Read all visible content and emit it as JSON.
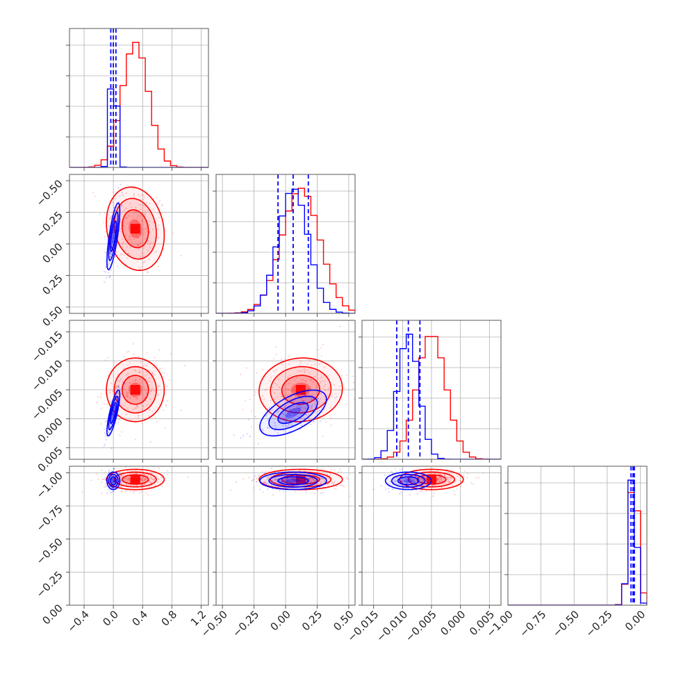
{
  "chart_data": {
    "type": "corner",
    "parameters": 4,
    "colors": {
      "series_a": "#ff0000",
      "series_b": "#0000ff",
      "grid": "#b0b0b0",
      "frame": "#555555"
    },
    "series": [
      {
        "color": "#ff0000",
        "means": [
          0.3,
          0.12,
          -0.005,
          -0.05
        ],
        "sds": [
          0.18,
          0.15,
          0.0025,
          0.035
        ],
        "cross_corr": {
          "1_0": -0.15,
          "2_0": 0.0,
          "2_1": 0.05,
          "3_0": 0.0,
          "3_1": 0.0,
          "3_2": 0.0
        }
      },
      {
        "color": "#0000ff",
        "means": [
          0.0,
          0.06,
          -0.009,
          -0.06
        ],
        "sds": [
          0.04,
          0.12,
          0.0018,
          0.03
        ],
        "cross_corr": {
          "1_0": 0.75,
          "2_0": 0.8,
          "2_1": 0.6,
          "3_0": 0.0,
          "3_1": 0.0,
          "3_2": 0.0
        }
      }
    ],
    "quantile_lines_series": "#0000ff",
    "axes": [
      {
        "range": [
          -0.6,
          1.3
        ],
        "ticks": [
          -0.4,
          0.0,
          0.4,
          0.8,
          1.2
        ],
        "tick_labels": [
          "−0.4",
          "0.0",
          "0.4",
          "0.8",
          "1.2"
        ],
        "quantiles_b": [
          -0.035,
          0.0,
          0.035
        ],
        "hist_b": [
          {
            "x": -0.06,
            "y": 6,
            "w": 0.04
          },
          {
            "x": 0.0,
            "y": 25,
            "w": 0.04
          },
          {
            "x": 0.04,
            "y": 7,
            "w": 0.04
          }
        ]
      },
      {
        "range": [
          -0.55,
          0.55
        ],
        "ticks": [
          -0.5,
          -0.25,
          0.0,
          0.25,
          0.5
        ],
        "tick_labels": [
          "−0.50",
          "−0.25",
          "0.00",
          "0.25",
          "0.50"
        ],
        "quantiles_b": [
          -0.06,
          0.06,
          0.18
        ]
      },
      {
        "range": [
          -0.017,
          0.007
        ],
        "ticks": [
          -0.015,
          -0.01,
          -0.005,
          0.0,
          0.005
        ],
        "tick_labels": [
          "−0.015",
          "−0.010",
          "−0.005",
          "0.000",
          "0.005"
        ],
        "quantiles_b": [
          -0.011,
          -0.009,
          -0.007
        ]
      },
      {
        "range": [
          -1.0,
          0.05
        ],
        "ticks": [
          -1.0,
          -0.75,
          -0.5,
          -0.25,
          0.0
        ],
        "tick_labels": [
          "−1.00",
          "−0.75",
          "−0.50",
          "−0.25",
          "0.00"
        ],
        "quantiles_b": [
          -0.07,
          -0.055,
          -0.045
        ]
      }
    ],
    "row_tick_labels": [
      [
        "0.50",
        "0.25",
        "0.00",
        "−0.25",
        "−0.50"
      ],
      [
        "0.005",
        "0.000",
        "−0.005",
        "−0.010",
        "−0.015"
      ],
      [
        "0.00",
        "−0.25",
        "−0.50",
        "−0.75",
        "−1.00"
      ]
    ],
    "grid": true,
    "title": "",
    "legend": "none"
  }
}
